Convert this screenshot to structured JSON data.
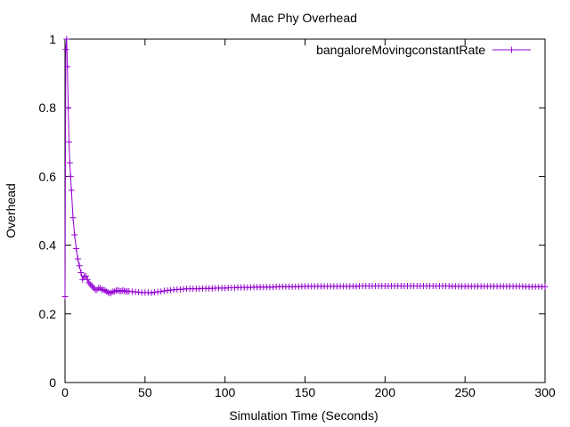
{
  "chart_data": {
    "type": "line",
    "title": "Mac Phy Overhead",
    "xlabel": "Simulation Time (Seconds)",
    "ylabel": "Overhead",
    "xlim": [
      0,
      300
    ],
    "ylim": [
      0,
      1
    ],
    "xticks": [
      "0",
      "50",
      "100",
      "150",
      "200",
      "250",
      "300"
    ],
    "yticks": [
      "0",
      "0.2",
      "0.4",
      "0.6",
      "0.8",
      "1"
    ],
    "grid": false,
    "legend_position": "top-right",
    "marker": "plus",
    "series": [
      {
        "name": "bangaloreMovingconstantRate",
        "color": "#9400d3",
        "x": [
          0,
          0.5,
          1,
          1.5,
          2,
          2.5,
          3,
          3.5,
          4,
          5,
          6,
          7,
          8,
          9,
          10,
          11,
          12,
          13,
          14,
          15,
          16,
          17,
          18,
          19,
          20,
          21,
          22,
          23,
          24,
          25,
          26,
          27,
          28,
          29,
          30,
          31,
          32,
          33,
          34,
          35,
          36,
          37,
          38,
          39,
          40,
          42,
          44,
          46,
          48,
          50,
          52,
          54,
          56,
          58,
          60,
          62,
          64,
          66,
          68,
          70,
          72,
          74,
          76,
          78,
          80,
          82,
          84,
          86,
          88,
          90,
          92,
          94,
          96,
          98,
          100,
          102,
          104,
          106,
          108,
          110,
          112,
          114,
          116,
          118,
          120,
          122,
          124,
          126,
          128,
          130,
          132,
          134,
          136,
          138,
          140,
          142,
          144,
          146,
          148,
          150,
          152,
          154,
          156,
          158,
          160,
          162,
          164,
          166,
          168,
          170,
          172,
          174,
          176,
          178,
          180,
          182,
          184,
          186,
          188,
          190,
          192,
          194,
          196,
          198,
          200,
          202,
          204,
          206,
          208,
          210,
          212,
          214,
          216,
          218,
          220,
          222,
          224,
          226,
          228,
          230,
          232,
          234,
          236,
          238,
          240,
          242,
          244,
          246,
          248,
          250,
          252,
          254,
          256,
          258,
          260,
          262,
          264,
          266,
          268,
          270,
          272,
          274,
          276,
          278,
          280,
          282,
          284,
          286,
          288,
          290,
          292,
          294,
          296,
          298,
          300
        ],
        "y": [
          0.25,
          0.97,
          1.0,
          0.92,
          0.8,
          0.7,
          0.64,
          0.6,
          0.56,
          0.48,
          0.43,
          0.39,
          0.36,
          0.34,
          0.32,
          0.3,
          0.31,
          0.31,
          0.3,
          0.29,
          0.285,
          0.28,
          0.275,
          0.27,
          0.27,
          0.275,
          0.275,
          0.27,
          0.27,
          0.268,
          0.265,
          0.262,
          0.26,
          0.262,
          0.265,
          0.265,
          0.268,
          0.268,
          0.267,
          0.266,
          0.268,
          0.267,
          0.266,
          0.265,
          0.266,
          0.265,
          0.264,
          0.263,
          0.262,
          0.262,
          0.262,
          0.261,
          0.263,
          0.264,
          0.265,
          0.267,
          0.268,
          0.269,
          0.27,
          0.271,
          0.271,
          0.272,
          0.273,
          0.273,
          0.273,
          0.273,
          0.273,
          0.274,
          0.274,
          0.274,
          0.274,
          0.275,
          0.275,
          0.275,
          0.275,
          0.276,
          0.276,
          0.276,
          0.277,
          0.277,
          0.277,
          0.277,
          0.277,
          0.278,
          0.278,
          0.278,
          0.278,
          0.278,
          0.278,
          0.278,
          0.279,
          0.279,
          0.279,
          0.279,
          0.279,
          0.279,
          0.279,
          0.279,
          0.28,
          0.28,
          0.28,
          0.28,
          0.28,
          0.28,
          0.28,
          0.28,
          0.28,
          0.28,
          0.28,
          0.28,
          0.28,
          0.28,
          0.28,
          0.28,
          0.28,
          0.28,
          0.281,
          0.281,
          0.281,
          0.281,
          0.281,
          0.281,
          0.281,
          0.281,
          0.281,
          0.281,
          0.281,
          0.281,
          0.281,
          0.281,
          0.281,
          0.281,
          0.281,
          0.281,
          0.281,
          0.281,
          0.281,
          0.281,
          0.281,
          0.281,
          0.281,
          0.281,
          0.281,
          0.281,
          0.281,
          0.28,
          0.28,
          0.28,
          0.28,
          0.28,
          0.28,
          0.28,
          0.28,
          0.28,
          0.28,
          0.28,
          0.28,
          0.28,
          0.28,
          0.28,
          0.28,
          0.28,
          0.28,
          0.28,
          0.28,
          0.28,
          0.28,
          0.28,
          0.279,
          0.279,
          0.279,
          0.279,
          0.279,
          0.279,
          0.279
        ]
      }
    ]
  }
}
